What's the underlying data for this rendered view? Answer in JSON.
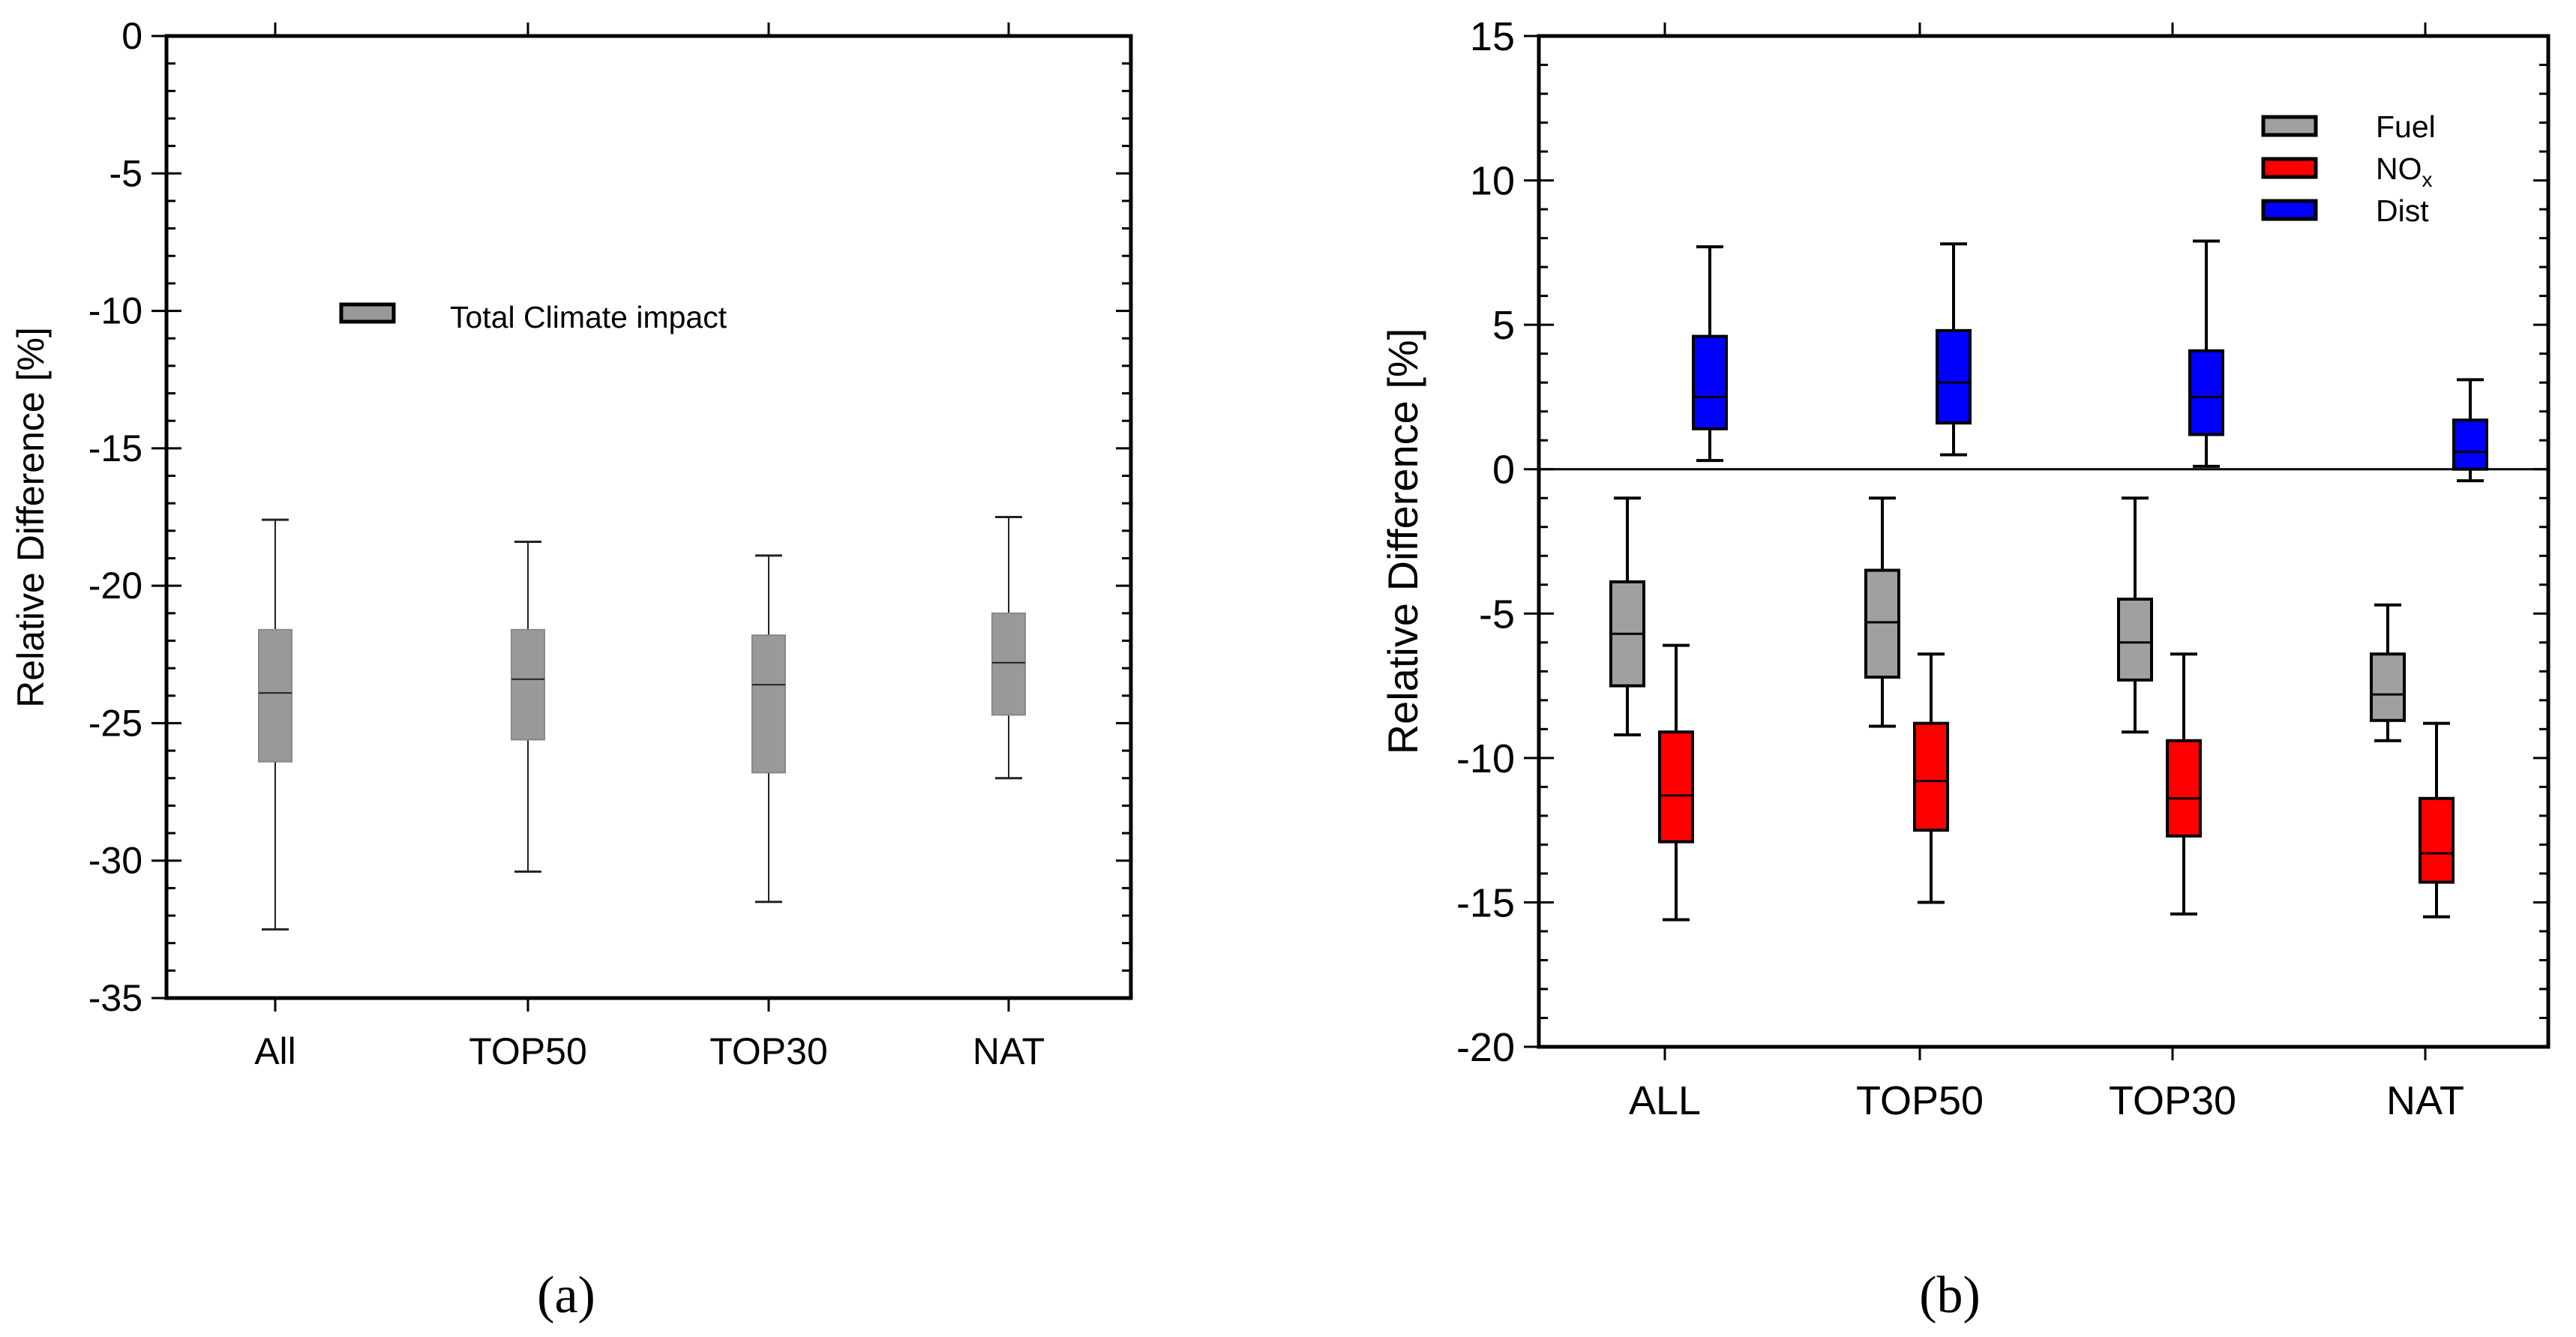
{
  "figure": {
    "panel_a_label": "(a)",
    "panel_b_label": "(b)"
  },
  "chart_data": [
    {
      "type": "box",
      "ylabel": "Relative Difference [%]",
      "xlabel": "",
      "ylim": [
        -35,
        0
      ],
      "yticks": [
        0,
        -5,
        -10,
        -15,
        -20,
        -25,
        -30,
        -35
      ],
      "ytick_labels": [
        "0",
        "-5",
        "-10",
        "-15",
        "-20",
        "-25",
        "-30",
        "-35"
      ],
      "categories": [
        "All",
        "TOP50",
        "TOP30",
        "NAT"
      ],
      "legend": {
        "position": "upper-middle",
        "entries": [
          "Total Climate impact"
        ]
      },
      "zero_line": false,
      "series": [
        {
          "name": "Total Climate impact",
          "color": "#999999",
          "boxes": [
            {
              "whisker_high": -17.6,
              "q3": -21.6,
              "median": -23.9,
              "q1": -26.4,
              "whisker_low": -32.5
            },
            {
              "whisker_high": -18.4,
              "q3": -21.6,
              "median": -23.4,
              "q1": -25.6,
              "whisker_low": -30.4
            },
            {
              "whisker_high": -18.9,
              "q3": -21.8,
              "median": -23.6,
              "q1": -26.8,
              "whisker_low": -31.5
            },
            {
              "whisker_high": -17.5,
              "q3": -21.0,
              "median": -22.8,
              "q1": -24.7,
              "whisker_low": -27.0
            }
          ]
        }
      ]
    },
    {
      "type": "box",
      "ylabel": "Relative Difference [%]",
      "xlabel": "",
      "ylim": [
        -20,
        15
      ],
      "yticks": [
        15,
        10,
        5,
        0,
        -5,
        -10,
        -15,
        -20
      ],
      "ytick_labels": [
        "15",
        "10",
        "5",
        "0",
        "-5",
        "-10",
        "-15",
        "-20"
      ],
      "categories": [
        "ALL",
        "TOP50",
        "TOP30",
        "NAT"
      ],
      "legend": {
        "position": "top-right",
        "entries": [
          "Fuel",
          "NO",
          "Dist"
        ],
        "nox_subscript": "x"
      },
      "zero_line": true,
      "series": [
        {
          "name": "Fuel",
          "color": "#a0a0a0",
          "boxes": [
            {
              "whisker_high": -1.0,
              "q3": -3.9,
              "median": -5.7,
              "q1": -7.5,
              "whisker_low": -9.2
            },
            {
              "whisker_high": -1.0,
              "q3": -3.5,
              "median": -5.3,
              "q1": -7.2,
              "whisker_low": -8.9
            },
            {
              "whisker_high": -1.0,
              "q3": -4.5,
              "median": -6.0,
              "q1": -7.3,
              "whisker_low": -9.1
            },
            {
              "whisker_high": -4.7,
              "q3": -6.4,
              "median": -7.8,
              "q1": -8.7,
              "whisker_low": -9.4
            }
          ]
        },
        {
          "name": "NO",
          "color": "#ff0000",
          "boxes": [
            {
              "whisker_high": -6.1,
              "q3": -9.1,
              "median": -11.3,
              "q1": -12.9,
              "whisker_low": -15.6
            },
            {
              "whisker_high": -6.4,
              "q3": -8.8,
              "median": -10.8,
              "q1": -12.5,
              "whisker_low": -15.0
            },
            {
              "whisker_high": -6.4,
              "q3": -9.4,
              "median": -11.4,
              "q1": -12.7,
              "whisker_low": -15.4
            },
            {
              "whisker_high": -8.8,
              "q3": -11.4,
              "median": -13.3,
              "q1": -14.3,
              "whisker_low": -15.5
            }
          ]
        },
        {
          "name": "Dist",
          "color": "#0000ff",
          "boxes": [
            {
              "whisker_high": 7.7,
              "q3": 4.6,
              "median": 2.5,
              "q1": 1.4,
              "whisker_low": 0.3
            },
            {
              "whisker_high": 7.8,
              "q3": 4.8,
              "median": 3.0,
              "q1": 1.6,
              "whisker_low": 0.5
            },
            {
              "whisker_high": 7.9,
              "q3": 4.1,
              "median": 2.5,
              "q1": 1.2,
              "whisker_low": 0.1
            },
            {
              "whisker_high": 3.1,
              "q3": 1.7,
              "median": 0.6,
              "q1": 0.0,
              "whisker_low": -0.4
            }
          ]
        }
      ]
    }
  ]
}
